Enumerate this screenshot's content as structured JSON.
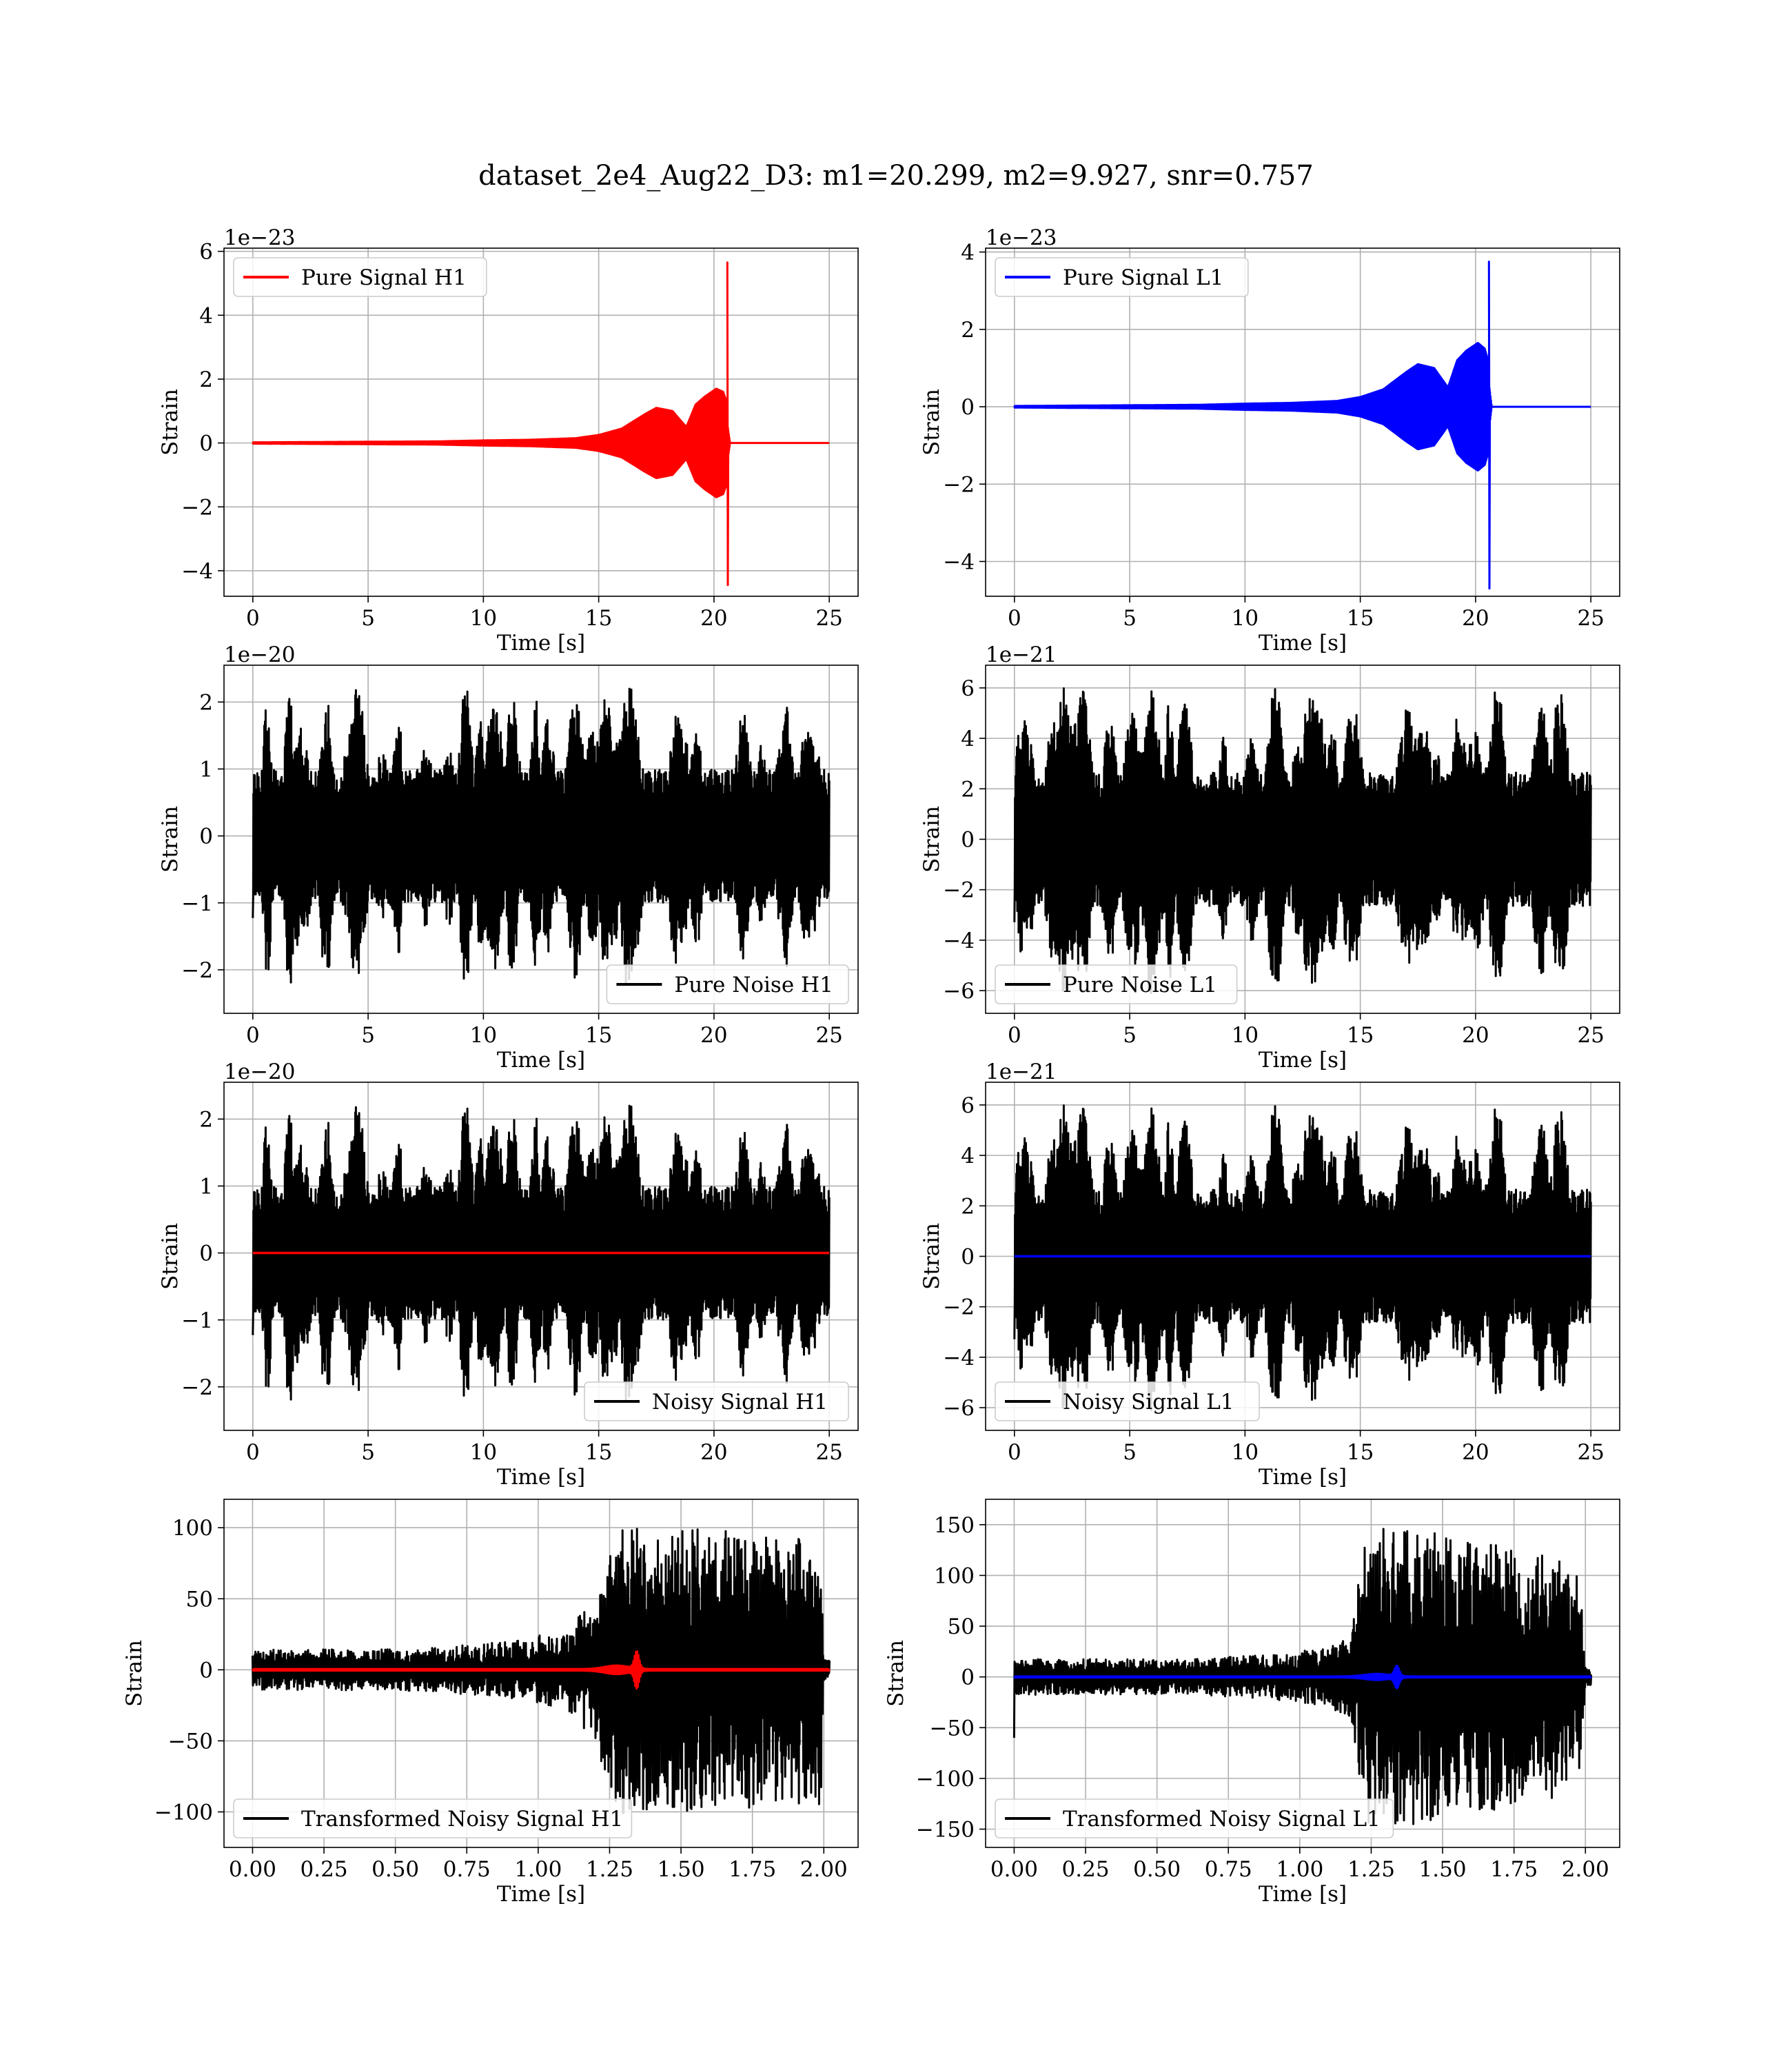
{
  "figure": {
    "title": "dataset_2e4_Aug22_D3: m1=20.299, m2=9.927, snr=0.757"
  },
  "chart_data": [
    {
      "type": "line",
      "panel": "top-left",
      "legend": "top-left",
      "grid": true,
      "xlabel": "Time [s]",
      "ylabel": "Strain",
      "offset_text": "1e−23",
      "xlim": [
        -1.25,
        26.25
      ],
      "ylim": [
        -4.8,
        6.1
      ],
      "xticks": [
        0,
        5,
        10,
        15,
        20,
        25
      ],
      "yticks": [
        -4,
        -2,
        0,
        2,
        4,
        6
      ],
      "tick_format": "int",
      "series": [
        {
          "name": "Pure Signal H1",
          "color": "#ff0000",
          "kind": "chirp",
          "start": 0,
          "end": 25,
          "peak_time": 20.6,
          "peak_max": 5.65,
          "peak_min": -4.45,
          "envelope_x": [
            0,
            8,
            10,
            12,
            14,
            15,
            16,
            17,
            17.5,
            18.2,
            18.8,
            19.2,
            19.6,
            20.1,
            20.4,
            20.55,
            20.6,
            20.7,
            25
          ],
          "envelope_y": [
            0.02,
            0.05,
            0.08,
            0.1,
            0.15,
            0.25,
            0.45,
            0.9,
            1.1,
            1.0,
            0.5,
            1.2,
            1.45,
            1.7,
            1.6,
            1.3,
            0.5,
            0.0,
            0.0
          ]
        }
      ]
    },
    {
      "type": "line",
      "panel": "top-right",
      "legend": "top-left",
      "grid": true,
      "xlabel": "Time [s]",
      "ylabel": "Strain",
      "offset_text": "1e−23",
      "xlim": [
        -1.25,
        26.25
      ],
      "ylim": [
        -4.9,
        4.1
      ],
      "xticks": [
        0,
        5,
        10,
        15,
        20,
        25
      ],
      "yticks": [
        -4,
        -2,
        0,
        2,
        4
      ],
      "tick_format": "int",
      "series": [
        {
          "name": "Pure Signal L1",
          "color": "#0000ff",
          "kind": "chirp",
          "start": 0,
          "end": 25,
          "peak_time": 20.6,
          "peak_max": 3.75,
          "peak_min": -4.7,
          "envelope_x": [
            0,
            8,
            10,
            12,
            14,
            15,
            16,
            17,
            17.5,
            18.2,
            18.8,
            19.2,
            19.6,
            20.1,
            20.4,
            20.55,
            20.6,
            20.7,
            25
          ],
          "envelope_y": [
            0.02,
            0.05,
            0.08,
            0.1,
            0.15,
            0.25,
            0.45,
            0.9,
            1.1,
            1.0,
            0.5,
            1.2,
            1.45,
            1.65,
            1.5,
            1.2,
            0.5,
            0.0,
            0.0
          ]
        }
      ]
    },
    {
      "type": "line",
      "panel": "row2-left",
      "legend": "lower-right",
      "grid": true,
      "xlabel": "Time [s]",
      "ylabel": "Strain",
      "offset_text": "1e−20",
      "xlim": [
        -1.25,
        26.25
      ],
      "ylim": [
        -2.65,
        2.55
      ],
      "xticks": [
        0,
        5,
        10,
        15,
        20,
        25
      ],
      "yticks": [
        -2,
        -1,
        0,
        1,
        2
      ],
      "tick_format": "int",
      "series": [
        {
          "name": "Pure Noise H1",
          "color": "#000000",
          "kind": "noise",
          "start": 0,
          "end": 25,
          "amplitude": 2.35,
          "seed": 11
        }
      ]
    },
    {
      "type": "line",
      "panel": "row2-right",
      "legend": "lower-left",
      "grid": true,
      "xlabel": "Time [s]",
      "ylabel": "Strain",
      "offset_text": "1e−21",
      "xlim": [
        -1.25,
        26.25
      ],
      "ylim": [
        -6.9,
        6.9
      ],
      "xticks": [
        0,
        5,
        10,
        15,
        20,
        25
      ],
      "yticks": [
        -6,
        -4,
        -2,
        0,
        2,
        4,
        6
      ],
      "tick_format": "int",
      "series": [
        {
          "name": "Pure Noise L1",
          "color": "#000000",
          "kind": "noise",
          "start": 0,
          "end": 25,
          "amplitude": 6.3,
          "seed": 23
        }
      ]
    },
    {
      "type": "line",
      "panel": "row3-left",
      "legend": "lower-right",
      "grid": true,
      "xlabel": "Time [s]",
      "ylabel": "Strain",
      "offset_text": "1e−20",
      "xlim": [
        -1.25,
        26.25
      ],
      "ylim": [
        -2.65,
        2.55
      ],
      "xticks": [
        0,
        5,
        10,
        15,
        20,
        25
      ],
      "yticks": [
        -2,
        -1,
        0,
        1,
        2
      ],
      "tick_format": "int",
      "series": [
        {
          "name": "Noisy Signal H1",
          "color": "#000000",
          "kind": "noise",
          "start": 0,
          "end": 25,
          "amplitude": 2.35,
          "seed": 11
        },
        {
          "color": "#ff0000",
          "kind": "flat",
          "start": 0,
          "end": 25,
          "value": 0
        }
      ]
    },
    {
      "type": "line",
      "panel": "row3-right",
      "legend": "lower-left",
      "grid": true,
      "xlabel": "Time [s]",
      "ylabel": "Strain",
      "offset_text": "1e−21",
      "xlim": [
        -1.25,
        26.25
      ],
      "ylim": [
        -6.9,
        6.9
      ],
      "xticks": [
        0,
        5,
        10,
        15,
        20,
        25
      ],
      "yticks": [
        -6,
        -4,
        -2,
        0,
        2,
        4,
        6
      ],
      "tick_format": "int",
      "series": [
        {
          "name": "Noisy Signal L1",
          "color": "#000000",
          "kind": "noise",
          "start": 0,
          "end": 25,
          "amplitude": 6.3,
          "seed": 23
        },
        {
          "color": "#0000ff",
          "kind": "flat",
          "start": 0,
          "end": 25,
          "value": 0
        }
      ]
    },
    {
      "type": "line",
      "panel": "bottom-left",
      "legend": "lower-left",
      "grid": true,
      "xlabel": "Time [s]",
      "ylabel": "Strain",
      "offset_text": "",
      "xlim": [
        -0.1,
        2.12
      ],
      "ylim": [
        -125,
        120
      ],
      "xticks": [
        0,
        0.25,
        0.5,
        0.75,
        1.0,
        1.25,
        1.5,
        1.75,
        2.0
      ],
      "yticks": [
        -100,
        -50,
        0,
        50,
        100
      ],
      "tick_format": "fixed2x",
      "series": [
        {
          "name": "Transformed Noisy Signal H1",
          "color": "#000000",
          "kind": "whitened",
          "start": 0,
          "end": 2.02,
          "amp_x": [
            0,
            0.6,
            0.9,
            1.1,
            1.2,
            1.25,
            1.3,
            1.5,
            1.9,
            1.99,
            2.0,
            2.02
          ],
          "amp_y": [
            14,
            15,
            20,
            28,
            50,
            90,
            105,
            100,
            95,
            95,
            10,
            8
          ],
          "seed": 5
        },
        {
          "color": "#ff0000",
          "kind": "whitened_signal",
          "start": 0,
          "end": 2.02,
          "burst_time": 1.345,
          "burst_amp": 12
        }
      ]
    },
    {
      "type": "line",
      "panel": "bottom-right",
      "legend": "lower-left",
      "grid": true,
      "xlabel": "Time [s]",
      "ylabel": "Strain",
      "offset_text": "",
      "xlim": [
        -0.1,
        2.12
      ],
      "ylim": [
        -168,
        175
      ],
      "xticks": [
        0,
        0.25,
        0.5,
        0.75,
        1.0,
        1.25,
        1.5,
        1.75,
        2.0
      ],
      "yticks": [
        -150,
        -100,
        -50,
        0,
        50,
        100,
        150
      ],
      "tick_format": "fixed2x",
      "series": [
        {
          "name": "Transformed Noisy Signal L1",
          "color": "#000000",
          "kind": "whitened",
          "start": 0,
          "end": 2.02,
          "amp_x": [
            0,
            0.6,
            0.9,
            1.1,
            1.18,
            1.22,
            1.25,
            1.5,
            1.9,
            1.98,
            2.0,
            2.02
          ],
          "amp_y": [
            18,
            17,
            22,
            30,
            45,
            120,
            155,
            140,
            120,
            100,
            10,
            8
          ],
          "seed": 9,
          "start_spike": -60
        },
        {
          "color": "#0000ff",
          "kind": "whitened_signal",
          "start": 0,
          "end": 2.02,
          "burst_time": 1.34,
          "burst_amp": 10
        }
      ]
    }
  ]
}
